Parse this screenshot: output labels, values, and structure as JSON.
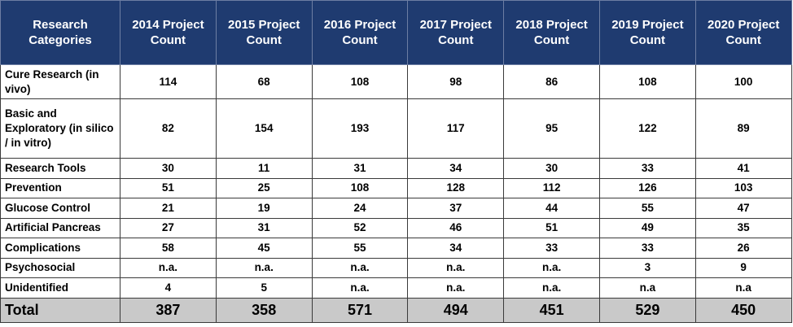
{
  "table": {
    "headers": [
      "Research Categories",
      "2014 Project Count",
      "2015 Project Count",
      "2016 Project Count",
      "2017 Project Count",
      "2018 Project Count",
      "2019 Project Count",
      "2020 Project Count"
    ],
    "rows": [
      {
        "category": "Cure Research (in vivo)",
        "values": [
          "114",
          "68",
          "108",
          "98",
          "86",
          "108",
          "100"
        ]
      },
      {
        "category": "Basic and Exploratory (in silico / in vitro)",
        "values": [
          "82",
          "154",
          "193",
          "117",
          "95",
          "122",
          "89"
        ]
      },
      {
        "category": "Research Tools",
        "values": [
          "30",
          "11",
          "31",
          "34",
          "30",
          "33",
          "41"
        ]
      },
      {
        "category": "Prevention",
        "values": [
          "51",
          "25",
          "108",
          "128",
          "112",
          "126",
          "103"
        ]
      },
      {
        "category": "Glucose Control",
        "values": [
          "21",
          "19",
          "24",
          "37",
          "44",
          "55",
          "47"
        ]
      },
      {
        "category": "Artificial Pancreas",
        "values": [
          "27",
          "31",
          "52",
          "46",
          "51",
          "49",
          "35"
        ]
      },
      {
        "category": "Complications",
        "values": [
          "58",
          "45",
          "55",
          "34",
          "33",
          "33",
          "26"
        ]
      },
      {
        "category": "Psychosocial",
        "values": [
          "n.a.",
          "n.a.",
          "n.a.",
          "n.a.",
          "n.a.",
          "3",
          "9"
        ]
      },
      {
        "category": "Unidentified",
        "values": [
          "4",
          "5",
          "n.a.",
          "n.a.",
          "n.a.",
          "n.a",
          "n.a"
        ]
      }
    ],
    "total": {
      "label": "Total",
      "values": [
        "387",
        "358",
        "571",
        "494",
        "451",
        "529",
        "450"
      ]
    }
  },
  "colors": {
    "header_bg": "#1f3b70",
    "header_text": "#ffffff",
    "total_bg": "#c9c9c9"
  }
}
